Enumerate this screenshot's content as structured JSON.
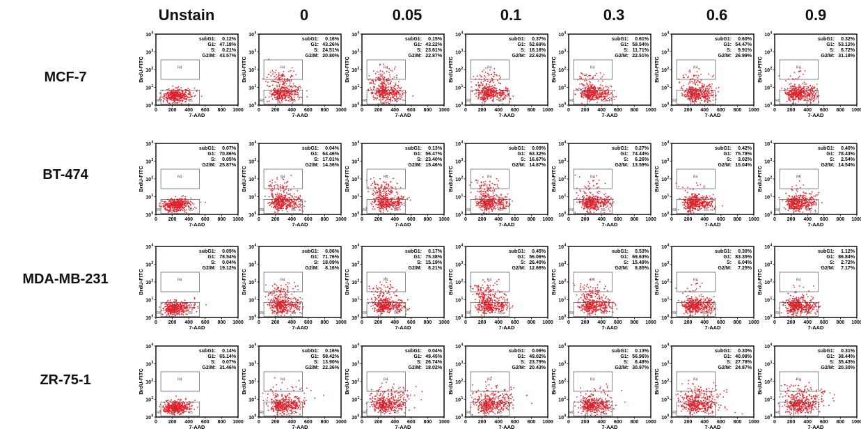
{
  "figure": {
    "columns": [
      "Unstain",
      "0",
      "0.05",
      "0.1",
      "0.3",
      "0.6",
      "0.9"
    ],
    "rows": [
      "MCF-7",
      "BT-474",
      "MDA-MB-231",
      "ZR-75-1"
    ]
  },
  "chart_data": {
    "type": "scatter",
    "description_labels": {
      "xlabel": "7-AAD",
      "ylabel": "BrdU-FITC",
      "xticks": [
        "0",
        "200",
        "400",
        "600",
        "800",
        "1000"
      ],
      "yticks": [
        "10",
        "10",
        "10",
        "10",
        "10"
      ],
      "ytick_exponents": [
        "0",
        "1",
        "2",
        "3",
        "4"
      ],
      "xlim": [
        0,
        1000
      ],
      "ylim_log10": [
        0,
        4
      ],
      "gates": [
        "R4",
        "R5",
        "R6"
      ],
      "stat_keys": [
        "subG1:",
        "G1:",
        "S:",
        "G2/M:"
      ],
      "point_color": "#e8202a"
    },
    "panels": [
      {
        "row": "MCF-7",
        "col": "Unstain",
        "stats": [
          "0.12%",
          "47.18%",
          "0.21%",
          "43.57%"
        ]
      },
      {
        "row": "MCF-7",
        "col": "0",
        "stats": [
          "0.16%",
          "43.26%",
          "24.51%",
          "20.80%"
        ]
      },
      {
        "row": "MCF-7",
        "col": "0.05",
        "stats": [
          "0.15%",
          "43.22%",
          "23.61%",
          "22.87%"
        ]
      },
      {
        "row": "MCF-7",
        "col": "0.1",
        "stats": [
          "0.37%",
          "52.69%",
          "16.16%",
          "22.62%"
        ]
      },
      {
        "row": "MCF-7",
        "col": "0.3",
        "stats": [
          "0.61%",
          "59.54%",
          "11.71%",
          "22.51%"
        ]
      },
      {
        "row": "MCF-7",
        "col": "0.6",
        "stats": [
          "0.60%",
          "54.47%",
          "9.91%",
          "26.99%"
        ]
      },
      {
        "row": "MCF-7",
        "col": "0.9",
        "stats": [
          "0.32%",
          "53.12%",
          "6.72%",
          "31.18%"
        ]
      },
      {
        "row": "BT-474",
        "col": "Unstain",
        "stats": [
          "0.07%",
          "70.86%",
          "0.05%",
          "25.87%"
        ]
      },
      {
        "row": "BT-474",
        "col": "0",
        "stats": [
          "0.04%",
          "64.46%",
          "17.01%",
          "14.36%"
        ]
      },
      {
        "row": "BT-474",
        "col": "0.05",
        "stats": [
          "0.13%",
          "56.47%",
          "23.40%",
          "15.46%"
        ]
      },
      {
        "row": "BT-474",
        "col": "0.1",
        "stats": [
          "0.09%",
          "63.32%",
          "16.67%",
          "14.87%"
        ]
      },
      {
        "row": "BT-474",
        "col": "0.3",
        "stats": [
          "0.27%",
          "74.44%",
          "6.26%",
          "13.59%"
        ]
      },
      {
        "row": "BT-474",
        "col": "0.6",
        "stats": [
          "0.42%",
          "75.78%",
          "3.02%",
          "15.04%"
        ]
      },
      {
        "row": "BT-474",
        "col": "0.9",
        "stats": [
          "0.40%",
          "78.43%",
          "2.54%",
          "14.54%"
        ]
      },
      {
        "row": "MDA-MB-231",
        "col": "Unstain",
        "stats": [
          "0.09%",
          "78.54%",
          "0.04%",
          "19.12%"
        ]
      },
      {
        "row": "MDA-MB-231",
        "col": "0",
        "stats": [
          "0.06%",
          "71.76%",
          "18.09%",
          "8.16%"
        ]
      },
      {
        "row": "MDA-MB-231",
        "col": "0.05",
        "stats": [
          "0.17%",
          "75.38%",
          "15.19%",
          "8.21%"
        ]
      },
      {
        "row": "MDA-MB-231",
        "col": "0.1",
        "stats": [
          "0.45%",
          "56.06%",
          "26.40%",
          "12.66%"
        ]
      },
      {
        "row": "MDA-MB-231",
        "col": "0.3",
        "stats": [
          "0.53%",
          "69.63%",
          "15.49%",
          "8.85%"
        ]
      },
      {
        "row": "MDA-MB-231",
        "col": "0.6",
        "stats": [
          "0.30%",
          "83.35%",
          "6.04%",
          "7.25%"
        ]
      },
      {
        "row": "MDA-MB-231",
        "col": "0.9",
        "stats": [
          "1.12%",
          "86.84%",
          "2.72%",
          "7.17%"
        ]
      },
      {
        "row": "ZR-75-1",
        "col": "Unstain",
        "stats": [
          "0.14%",
          "65.14%",
          "0.07%",
          "31.46%"
        ]
      },
      {
        "row": "ZR-75-1",
        "col": "0",
        "stats": [
          "0.16%",
          "58.42%",
          "13.90%",
          "22.36%"
        ]
      },
      {
        "row": "ZR-75-1",
        "col": "0.05",
        "stats": [
          "0.04%",
          "49.45%",
          "26.74%",
          "18.02%"
        ]
      },
      {
        "row": "ZR-75-1",
        "col": "0.1",
        "stats": [
          "0.06%",
          "49.02%",
          "23.79%",
          "20.43%"
        ]
      },
      {
        "row": "ZR-75-1",
        "col": "0.3",
        "stats": [
          "0.13%",
          "56.96%",
          "6.48%",
          "30.97%"
        ]
      },
      {
        "row": "ZR-75-1",
        "col": "0.6",
        "stats": [
          "0.30%",
          "40.08%",
          "27.78%",
          "24.87%"
        ]
      },
      {
        "row": "ZR-75-1",
        "col": "0.9",
        "stats": [
          "0.31%",
          "38.44%",
          "35.43%",
          "20.30%"
        ]
      }
    ]
  }
}
